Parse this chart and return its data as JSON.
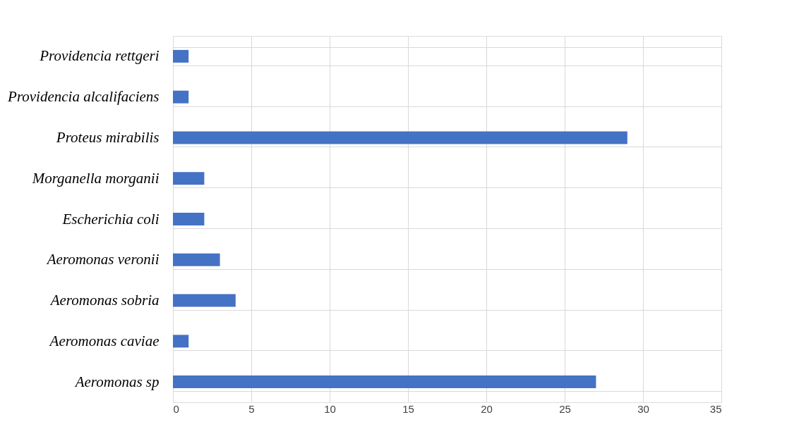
{
  "chart_data": {
    "type": "bar",
    "orientation": "horizontal",
    "categories": [
      "Providencia rettgeri",
      "Providencia alcalifaciens",
      "Proteus mirabilis",
      "Morganella morganii",
      "Escherichia coli",
      "Aeromonas veronii",
      "Aeromonas sobria",
      "Aeromonas caviae",
      "Aeromonas sp"
    ],
    "values": [
      1,
      1,
      29,
      2,
      2,
      3,
      4,
      1,
      27
    ],
    "color": "#4472c4",
    "xlim": [
      0,
      35
    ],
    "xticks": [
      0,
      5,
      10,
      15,
      20,
      25,
      30,
      35
    ],
    "grid": true
  }
}
